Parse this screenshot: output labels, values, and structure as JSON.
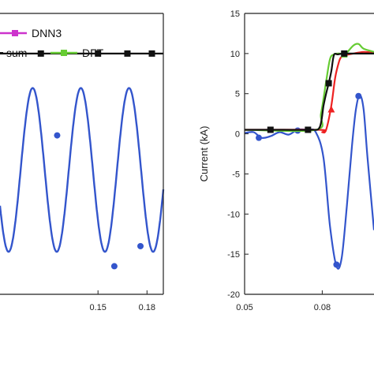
{
  "chart_data": [
    {
      "type": "line",
      "panel": "left",
      "xlim": [
        0.09,
        0.19
      ],
      "ylim": [
        -20,
        15
      ],
      "x_ticks": [
        "0.15",
        "0.18"
      ],
      "legend": [
        {
          "label": "DNN3",
          "color": "#cc33cc",
          "marker": "square"
        },
        {
          "label": "sum",
          "color": "#111111",
          "marker": "square"
        },
        {
          "label": "DFT",
          "color": "#66cc33",
          "marker": "square"
        }
      ],
      "series": [
        {
          "name": "sum",
          "color": "#111111",
          "flat_value": 10.0,
          "marker_x": [
            0.115,
            0.15,
            0.168,
            0.183
          ]
        },
        {
          "color": "#3355cc",
          "oscillation": {
            "center": -4.5,
            "amplitude": 10.2,
            "period": 0.0295,
            "phase_peak_x": 0.1395
          },
          "marker_points": [
            [
              0.125,
              -0.2
            ],
            [
              0.16,
              -16.5
            ],
            [
              0.176,
              -14.0
            ]
          ]
        }
      ]
    },
    {
      "type": "line",
      "panel": "right",
      "ylabel": "Current (kA)",
      "xlim": [
        0.05,
        0.1
      ],
      "ylim": [
        -20,
        15
      ],
      "x_ticks": [
        "0.05",
        "0.08"
      ],
      "y_ticks": [
        "15",
        "10",
        "5",
        "0",
        "-5",
        "-10",
        "-15",
        "-20"
      ],
      "series": [
        {
          "name": "sum",
          "color": "#111111",
          "points": [
            [
              0.05,
              0.5
            ],
            [
              0.065,
              0.5
            ],
            [
              0.0755,
              0.5
            ],
            [
              0.079,
              0.8
            ],
            [
              0.0805,
              3.5
            ],
            [
              0.0815,
              5.0
            ],
            [
              0.0825,
              6.3
            ],
            [
              0.0835,
              7.8
            ],
            [
              0.0845,
              9.8
            ],
            [
              0.086,
              9.9
            ],
            [
              0.0885,
              10.0
            ],
            [
              0.093,
              10.0
            ],
            [
              0.1,
              10.0
            ]
          ],
          "marker_points": [
            [
              0.06,
              0.5
            ],
            [
              0.0745,
              0.5
            ],
            [
              0.0825,
              6.3
            ],
            [
              0.0885,
              10.0
            ]
          ]
        },
        {
          "name": "DFT",
          "color": "#66cc33",
          "points": [
            [
              0.05,
              0.5
            ],
            [
              0.0775,
              0.5
            ],
            [
              0.0795,
              2.5
            ],
            [
              0.0815,
              6.5
            ],
            [
              0.083,
              9.3
            ],
            [
              0.0845,
              9.9
            ],
            [
              0.0865,
              10.0
            ],
            [
              0.0885,
              9.9
            ],
            [
              0.0895,
              10.1
            ],
            [
              0.092,
              11.0
            ],
            [
              0.094,
              11.2
            ],
            [
              0.096,
              10.6
            ],
            [
              0.1,
              10.2
            ]
          ],
          "marker_points": [
            [
              0.0885,
              9.9
            ]
          ]
        },
        {
          "color": "#ee2222",
          "points": [
            [
              0.05,
              0.5
            ],
            [
              0.079,
              0.5
            ],
            [
              0.08,
              0.2
            ],
            [
              0.0815,
              0.5
            ],
            [
              0.0835,
              3.5
            ],
            [
              0.085,
              7.0
            ],
            [
              0.0865,
              9.0
            ],
            [
              0.0875,
              9.6
            ],
            [
              0.089,
              9.8
            ],
            [
              0.092,
              10.0
            ],
            [
              0.096,
              10.2
            ],
            [
              0.1,
              10.1
            ]
          ],
          "marker_points": [
            [
              0.0835,
              3.0
            ]
          ]
        },
        {
          "color": "#3355cc",
          "points": [
            [
              0.05,
              0.1
            ],
            [
              0.0535,
              0.2
            ],
            [
              0.0565,
              -0.5
            ],
            [
              0.06,
              -0.3
            ],
            [
              0.0635,
              0.2
            ],
            [
              0.067,
              -0.1
            ],
            [
              0.0705,
              0.5
            ],
            [
              0.0745,
              0.5
            ],
            [
              0.0775,
              0.2
            ],
            [
              0.0805,
              -3.0
            ],
            [
              0.083,
              -11.5
            ],
            [
              0.0855,
              -16.5
            ],
            [
              0.0875,
              -15.5
            ],
            [
              0.0895,
              -9.0
            ],
            [
              0.0915,
              -1.5
            ],
            [
              0.093,
              3.0
            ],
            [
              0.0945,
              4.8
            ],
            [
              0.096,
              3.0
            ],
            [
              0.0975,
              -3.0
            ],
            [
              0.1,
              -12.0
            ]
          ],
          "marker_points": [
            [
              0.0555,
              -0.5
            ],
            [
              0.0705,
              0.4
            ],
            [
              0.0855,
              -16.3
            ],
            [
              0.094,
              4.7
            ]
          ]
        }
      ]
    }
  ]
}
